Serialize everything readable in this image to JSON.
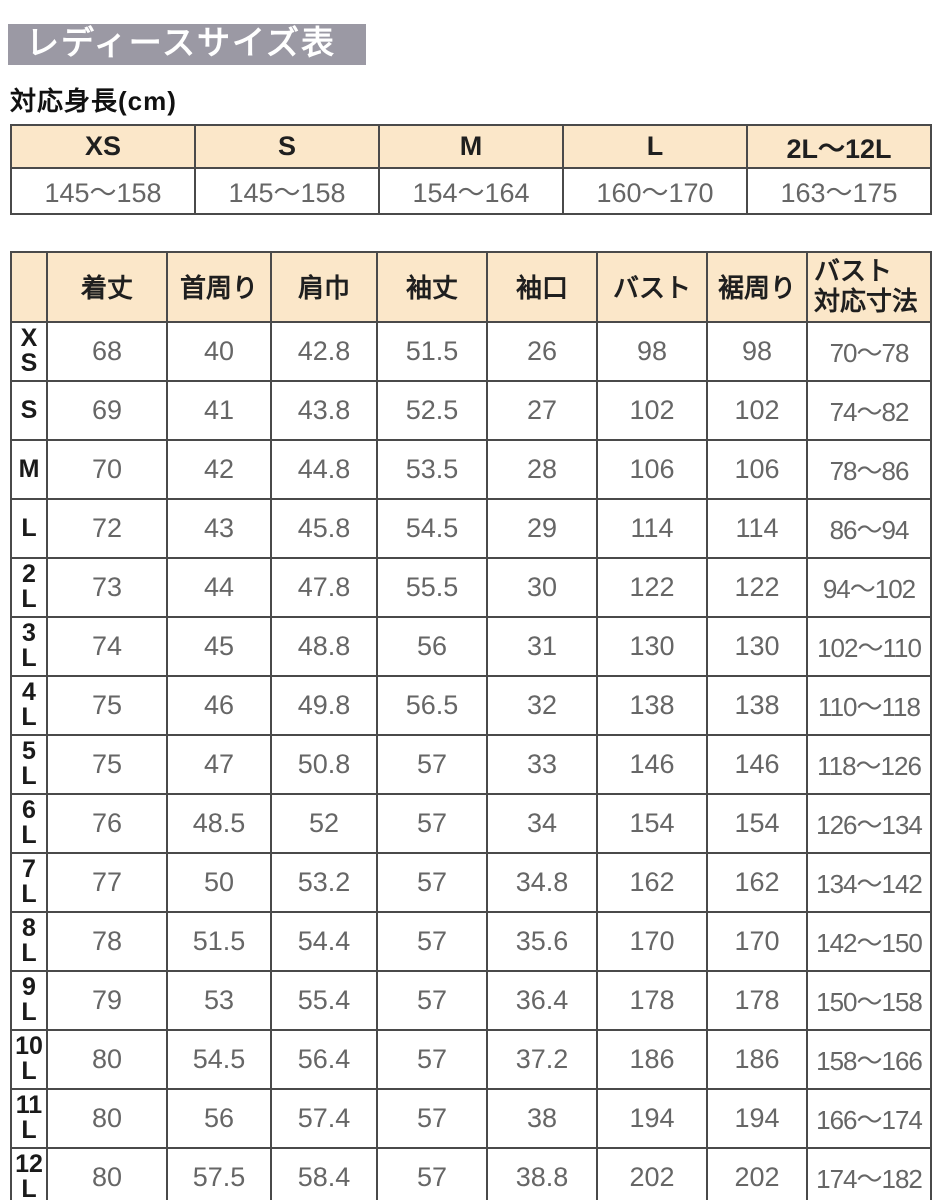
{
  "page": {
    "title": "レディースサイズ表",
    "subtitle": "対応身長(cm)"
  },
  "colors": {
    "title_bg": "#9b99a4",
    "title_text": "#ffffff",
    "header_bg": "#fbe7c9",
    "border": "#4a4a4a",
    "value_text": "#666666",
    "label_text": "#1a1a1a"
  },
  "chart_data": [
    {
      "type": "table",
      "title": "対応身長(cm)",
      "columns": [
        "XS",
        "S",
        "M",
        "L",
        "2L～12L"
      ],
      "rows": [
        [
          "145～158",
          "145～158",
          "154～164",
          "160～170",
          "163～175"
        ]
      ]
    },
    {
      "type": "table",
      "columns": [
        "着丈",
        "首周り",
        "肩巾",
        "袖丈",
        "袖口",
        "バスト",
        "裾周り",
        "バスト\n対応寸法"
      ],
      "row_labels": [
        "XS",
        "S",
        "M",
        "L",
        "2L",
        "3L",
        "4L",
        "5L",
        "6L",
        "7L",
        "8L",
        "9L",
        "10L",
        "11L",
        "12L"
      ],
      "row_labels_display": [
        "X\nS",
        "S",
        "M",
        "L",
        "2\nL",
        "3\nL",
        "4\nL",
        "5\nL",
        "6\nL",
        "7\nL",
        "8\nL",
        "9\nL",
        "10\nL",
        "11\nL",
        "12\nL"
      ],
      "rows": [
        [
          "68",
          "40",
          "42.8",
          "51.5",
          "26",
          "98",
          "98",
          "70～78"
        ],
        [
          "69",
          "41",
          "43.8",
          "52.5",
          "27",
          "102",
          "102",
          "74～82"
        ],
        [
          "70",
          "42",
          "44.8",
          "53.5",
          "28",
          "106",
          "106",
          "78～86"
        ],
        [
          "72",
          "43",
          "45.8",
          "54.5",
          "29",
          "114",
          "114",
          "86～94"
        ],
        [
          "73",
          "44",
          "47.8",
          "55.5",
          "30",
          "122",
          "122",
          "94～102"
        ],
        [
          "74",
          "45",
          "48.8",
          "56",
          "31",
          "130",
          "130",
          "102～110"
        ],
        [
          "75",
          "46",
          "49.8",
          "56.5",
          "32",
          "138",
          "138",
          "110～118"
        ],
        [
          "75",
          "47",
          "50.8",
          "57",
          "33",
          "146",
          "146",
          "118～126"
        ],
        [
          "76",
          "48.5",
          "52",
          "57",
          "34",
          "154",
          "154",
          "126～134"
        ],
        [
          "77",
          "50",
          "53.2",
          "57",
          "34.8",
          "162",
          "162",
          "134～142"
        ],
        [
          "78",
          "51.5",
          "54.4",
          "57",
          "35.6",
          "170",
          "170",
          "142～150"
        ],
        [
          "79",
          "53",
          "55.4",
          "57",
          "36.4",
          "178",
          "178",
          "150～158"
        ],
        [
          "80",
          "54.5",
          "56.4",
          "57",
          "37.2",
          "186",
          "186",
          "158～166"
        ],
        [
          "80",
          "56",
          "57.4",
          "57",
          "38",
          "194",
          "194",
          "166～174"
        ],
        [
          "80",
          "57.5",
          "58.4",
          "57",
          "38.8",
          "202",
          "202",
          "174～182"
        ]
      ]
    }
  ]
}
